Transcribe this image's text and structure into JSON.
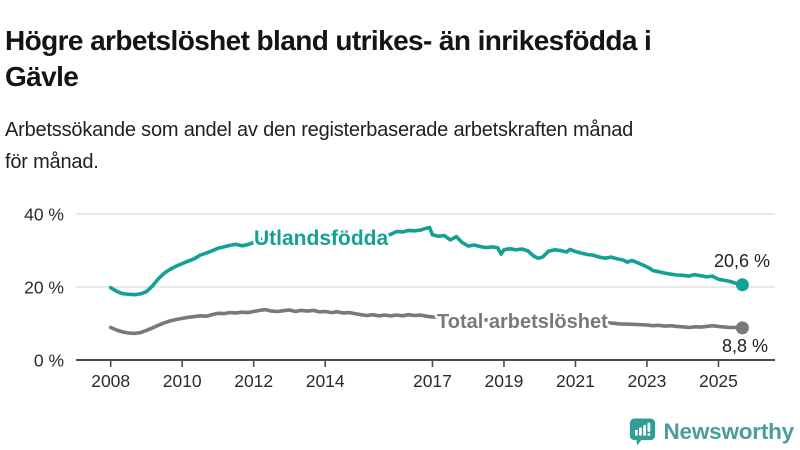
{
  "header": {
    "title": "Högre arbetslöshet bland utrikes- än inrikesfödda i Gävle",
    "title_lines": [
      "Högre arbetslöshet bland utrikes- än inrikesfödda i",
      "Gävle"
    ],
    "subtitle": "Arbetssökande som andel av den registerbaserade arbetskraften månad för månad.",
    "subtitle_lines": [
      "Arbetssökande som andel av den registerbaserade arbetskraften månad",
      "för månad."
    ]
  },
  "chart_data": {
    "type": "line",
    "title": "Högre arbetslöshet bland utrikes- än inrikesfödda i Gävle",
    "subtitle": "Arbetssökande som andel av den registerbaserade arbetskraften månad för månad.",
    "unit": "%",
    "xlim": [
      2007.1,
      2026.5
    ],
    "ylim": [
      0,
      44
    ],
    "grid": "horizontal",
    "legend": "inline-labels",
    "x_ticks": [
      {
        "value": 2008,
        "label": "2008"
      },
      {
        "value": 2010,
        "label": "2010"
      },
      {
        "value": 2012,
        "label": "2012"
      },
      {
        "value": 2014,
        "label": "2014"
      },
      {
        "value": 2017,
        "label": "2017"
      },
      {
        "value": 2019,
        "label": "2019"
      },
      {
        "value": 2021,
        "label": "2021"
      },
      {
        "value": 2023,
        "label": "2023"
      },
      {
        "value": 2025,
        "label": "2025"
      }
    ],
    "y_ticks": [
      {
        "value": 0,
        "label": "0 %"
      },
      {
        "value": 20,
        "label": "20 %"
      },
      {
        "value": 40,
        "label": "40 %"
      }
    ],
    "series": [
      {
        "name": "Utlandsfödda",
        "color": "#14a193",
        "end_label": "20,6 %",
        "end_value": 20.6,
        "points": [
          [
            2008.0,
            19.8
          ],
          [
            2008.17,
            18.8
          ],
          [
            2008.33,
            18.2
          ],
          [
            2008.5,
            18.0
          ],
          [
            2008.67,
            17.9
          ],
          [
            2008.83,
            18.1
          ],
          [
            2009.0,
            18.7
          ],
          [
            2009.17,
            20.3
          ],
          [
            2009.33,
            22.2
          ],
          [
            2009.5,
            23.8
          ],
          [
            2009.67,
            24.9
          ],
          [
            2009.83,
            25.7
          ],
          [
            2010.0,
            26.4
          ],
          [
            2010.17,
            27.1
          ],
          [
            2010.33,
            27.7
          ],
          [
            2010.5,
            28.7
          ],
          [
            2010.67,
            29.3
          ],
          [
            2010.83,
            29.9
          ],
          [
            2011.0,
            30.6
          ],
          [
            2011.17,
            31.0
          ],
          [
            2011.33,
            31.4
          ],
          [
            2011.5,
            31.7
          ],
          [
            2011.67,
            31.3
          ],
          [
            2011.83,
            31.6
          ],
          [
            2012.0,
            32.2
          ],
          [
            2012.17,
            32.9
          ],
          [
            2012.33,
            33.3
          ],
          [
            2012.5,
            32.6
          ],
          [
            2012.67,
            32.4
          ],
          [
            2012.83,
            32.9
          ],
          [
            2013.0,
            33.2
          ],
          [
            2013.17,
            32.7
          ],
          [
            2013.33,
            33.1
          ],
          [
            2013.5,
            32.8
          ],
          [
            2013.67,
            33.2
          ],
          [
            2013.83,
            32.9
          ],
          [
            2014.0,
            33.1
          ],
          [
            2014.17,
            33.4
          ],
          [
            2014.33,
            33.1
          ],
          [
            2014.5,
            33.3
          ],
          [
            2014.67,
            33.2
          ],
          [
            2014.83,
            33.6
          ],
          [
            2015.0,
            33.8
          ],
          [
            2015.17,
            34.0
          ],
          [
            2015.33,
            33.9
          ],
          [
            2015.5,
            34.1
          ],
          [
            2015.67,
            34.0
          ],
          [
            2015.83,
            34.4
          ],
          [
            2016.0,
            35.2
          ],
          [
            2016.17,
            35.1
          ],
          [
            2016.33,
            35.5
          ],
          [
            2016.5,
            35.4
          ],
          [
            2016.67,
            35.6
          ],
          [
            2016.83,
            36.1
          ],
          [
            2016.92,
            36.3
          ],
          [
            2017.0,
            34.3
          ],
          [
            2017.17,
            33.9
          ],
          [
            2017.33,
            34.1
          ],
          [
            2017.5,
            32.9
          ],
          [
            2017.67,
            33.8
          ],
          [
            2017.83,
            32.2
          ],
          [
            2018.0,
            31.2
          ],
          [
            2018.17,
            31.5
          ],
          [
            2018.33,
            31.1
          ],
          [
            2018.5,
            30.8
          ],
          [
            2018.67,
            31.0
          ],
          [
            2018.83,
            30.7
          ],
          [
            2018.92,
            29.0
          ],
          [
            2019.0,
            30.2
          ],
          [
            2019.17,
            30.5
          ],
          [
            2019.33,
            30.2
          ],
          [
            2019.5,
            30.4
          ],
          [
            2019.67,
            29.9
          ],
          [
            2019.83,
            28.5
          ],
          [
            2019.95,
            27.9
          ],
          [
            2020.08,
            28.2
          ],
          [
            2020.25,
            29.8
          ],
          [
            2020.42,
            30.2
          ],
          [
            2020.58,
            30.0
          ],
          [
            2020.75,
            29.6
          ],
          [
            2020.85,
            30.3
          ],
          [
            2021.0,
            29.7
          ],
          [
            2021.17,
            29.3
          ],
          [
            2021.33,
            28.9
          ],
          [
            2021.5,
            28.7
          ],
          [
            2021.67,
            28.2
          ],
          [
            2021.83,
            27.9
          ],
          [
            2022.0,
            28.2
          ],
          [
            2022.17,
            27.7
          ],
          [
            2022.33,
            27.4
          ],
          [
            2022.45,
            26.8
          ],
          [
            2022.58,
            27.3
          ],
          [
            2022.75,
            26.6
          ],
          [
            2022.92,
            25.9
          ],
          [
            2023.08,
            25.1
          ],
          [
            2023.17,
            24.5
          ],
          [
            2023.33,
            24.2
          ],
          [
            2023.5,
            23.8
          ],
          [
            2023.67,
            23.5
          ],
          [
            2023.83,
            23.3
          ],
          [
            2024.0,
            23.2
          ],
          [
            2024.17,
            23.0
          ],
          [
            2024.33,
            23.4
          ],
          [
            2024.5,
            23.1
          ],
          [
            2024.67,
            22.8
          ],
          [
            2024.83,
            23.0
          ],
          [
            2025.0,
            22.1
          ],
          [
            2025.17,
            21.8
          ],
          [
            2025.33,
            21.5
          ],
          [
            2025.5,
            21.0
          ],
          [
            2025.67,
            20.6
          ]
        ]
      },
      {
        "name": "Total arbetslöshet",
        "color": "#78787d",
        "end_label": "8,8 %",
        "end_value": 8.8,
        "points": [
          [
            2008.0,
            8.9
          ],
          [
            2008.17,
            8.2
          ],
          [
            2008.33,
            7.7
          ],
          [
            2008.5,
            7.4
          ],
          [
            2008.67,
            7.3
          ],
          [
            2008.83,
            7.5
          ],
          [
            2009.0,
            8.1
          ],
          [
            2009.17,
            8.8
          ],
          [
            2009.33,
            9.5
          ],
          [
            2009.5,
            10.2
          ],
          [
            2009.67,
            10.7
          ],
          [
            2009.83,
            11.1
          ],
          [
            2010.0,
            11.4
          ],
          [
            2010.17,
            11.7
          ],
          [
            2010.33,
            11.9
          ],
          [
            2010.5,
            12.1
          ],
          [
            2010.67,
            12.0
          ],
          [
            2010.83,
            12.4
          ],
          [
            2011.0,
            12.8
          ],
          [
            2011.17,
            12.7
          ],
          [
            2011.33,
            13.0
          ],
          [
            2011.5,
            12.9
          ],
          [
            2011.67,
            13.1
          ],
          [
            2011.83,
            13.0
          ],
          [
            2012.0,
            13.3
          ],
          [
            2012.17,
            13.6
          ],
          [
            2012.33,
            13.8
          ],
          [
            2012.5,
            13.4
          ],
          [
            2012.67,
            13.3
          ],
          [
            2012.83,
            13.5
          ],
          [
            2013.0,
            13.7
          ],
          [
            2013.17,
            13.3
          ],
          [
            2013.33,
            13.6
          ],
          [
            2013.5,
            13.4
          ],
          [
            2013.67,
            13.6
          ],
          [
            2013.83,
            13.2
          ],
          [
            2014.0,
            13.3
          ],
          [
            2014.17,
            13.0
          ],
          [
            2014.33,
            13.2
          ],
          [
            2014.5,
            12.9
          ],
          [
            2014.67,
            13.0
          ],
          [
            2014.83,
            12.7
          ],
          [
            2015.0,
            12.4
          ],
          [
            2015.17,
            12.2
          ],
          [
            2015.33,
            12.4
          ],
          [
            2015.5,
            12.1
          ],
          [
            2015.67,
            12.3
          ],
          [
            2015.83,
            12.1
          ],
          [
            2016.0,
            12.3
          ],
          [
            2016.17,
            12.1
          ],
          [
            2016.33,
            12.4
          ],
          [
            2016.5,
            12.2
          ],
          [
            2016.67,
            12.3
          ],
          [
            2016.83,
            12.0
          ],
          [
            2017.0,
            11.8
          ],
          [
            2017.25,
            11.7
          ],
          [
            2017.5,
            11.5
          ],
          [
            2017.75,
            11.4
          ],
          [
            2018.0,
            11.3
          ],
          [
            2018.25,
            11.1
          ],
          [
            2018.5,
            11.0
          ],
          [
            2018.75,
            10.9
          ],
          [
            2019.0,
            10.8
          ],
          [
            2019.25,
            10.7
          ],
          [
            2019.5,
            10.6
          ],
          [
            2019.75,
            10.5
          ],
          [
            2020.0,
            10.7
          ],
          [
            2020.25,
            11.5
          ],
          [
            2020.42,
            11.9
          ],
          [
            2020.58,
            11.7
          ],
          [
            2020.75,
            11.4
          ],
          [
            2021.0,
            11.1
          ],
          [
            2021.25,
            10.8
          ],
          [
            2021.5,
            10.6
          ],
          [
            2021.75,
            10.3
          ],
          [
            2022.0,
            10.1
          ],
          [
            2022.25,
            9.9
          ],
          [
            2022.5,
            9.8
          ],
          [
            2022.75,
            9.7
          ],
          [
            2023.0,
            9.6
          ],
          [
            2023.17,
            9.4
          ],
          [
            2023.33,
            9.5
          ],
          [
            2023.5,
            9.3
          ],
          [
            2023.67,
            9.4
          ],
          [
            2023.83,
            9.2
          ],
          [
            2024.0,
            9.1
          ],
          [
            2024.17,
            8.9
          ],
          [
            2024.33,
            9.1
          ],
          [
            2024.5,
            9.0
          ],
          [
            2024.67,
            9.2
          ],
          [
            2024.83,
            9.4
          ],
          [
            2025.0,
            9.2
          ],
          [
            2025.17,
            9.0
          ],
          [
            2025.33,
            8.9
          ],
          [
            2025.5,
            8.9
          ],
          [
            2025.67,
            8.8
          ]
        ]
      }
    ]
  },
  "style": {
    "accent_teal": "#14a193",
    "line_gray": "#78787d",
    "gridline_color": "#dcdcdc",
    "axis_color": "#4c4c4c",
    "axis_text_color": "#2b2b2b",
    "end_label_color": "#1f1f1f"
  },
  "branding": {
    "logo_text": "Newsworthy",
    "logo_icon": "newsworthy-bar-chart-bubble-icon",
    "icon_color": "#2f9e96",
    "text_color": "#4a9d9b"
  }
}
